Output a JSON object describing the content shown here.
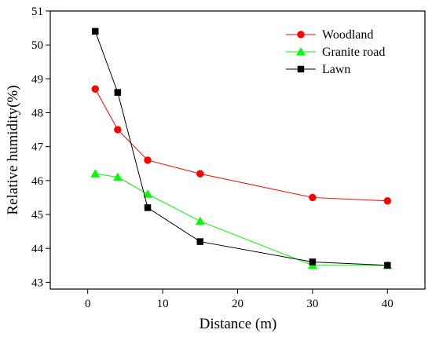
{
  "chart_data": {
    "type": "line",
    "title": "",
    "xlabel": "Distance (m)",
    "ylabel": "Relative humidity(%)",
    "xlim": [
      -5,
      45
    ],
    "ylim": [
      42.8,
      51
    ],
    "x_ticks": [
      0,
      10,
      20,
      30,
      40
    ],
    "y_ticks": [
      43,
      44,
      45,
      46,
      47,
      48,
      49,
      50,
      51
    ],
    "grid": false,
    "legend_position": "top-right",
    "series": [
      {
        "name": "Woodland",
        "color": "#ff0000",
        "marker": "circle",
        "x": [
          1,
          4,
          8,
          15,
          30,
          40
        ],
        "y": [
          48.7,
          47.5,
          46.6,
          46.2,
          45.5,
          45.4
        ]
      },
      {
        "name": "Granite road",
        "color": "#00ff00",
        "marker": "triangle",
        "x": [
          1,
          4,
          8,
          15,
          30,
          40
        ],
        "y": [
          46.2,
          46.1,
          45.6,
          44.8,
          43.5,
          43.5
        ]
      },
      {
        "name": "Lawn",
        "color": "#000000",
        "marker": "square",
        "x": [
          1,
          4,
          8,
          15,
          30,
          40
        ],
        "y": [
          50.4,
          48.6,
          45.2,
          44.2,
          43.6,
          43.5
        ]
      }
    ]
  }
}
